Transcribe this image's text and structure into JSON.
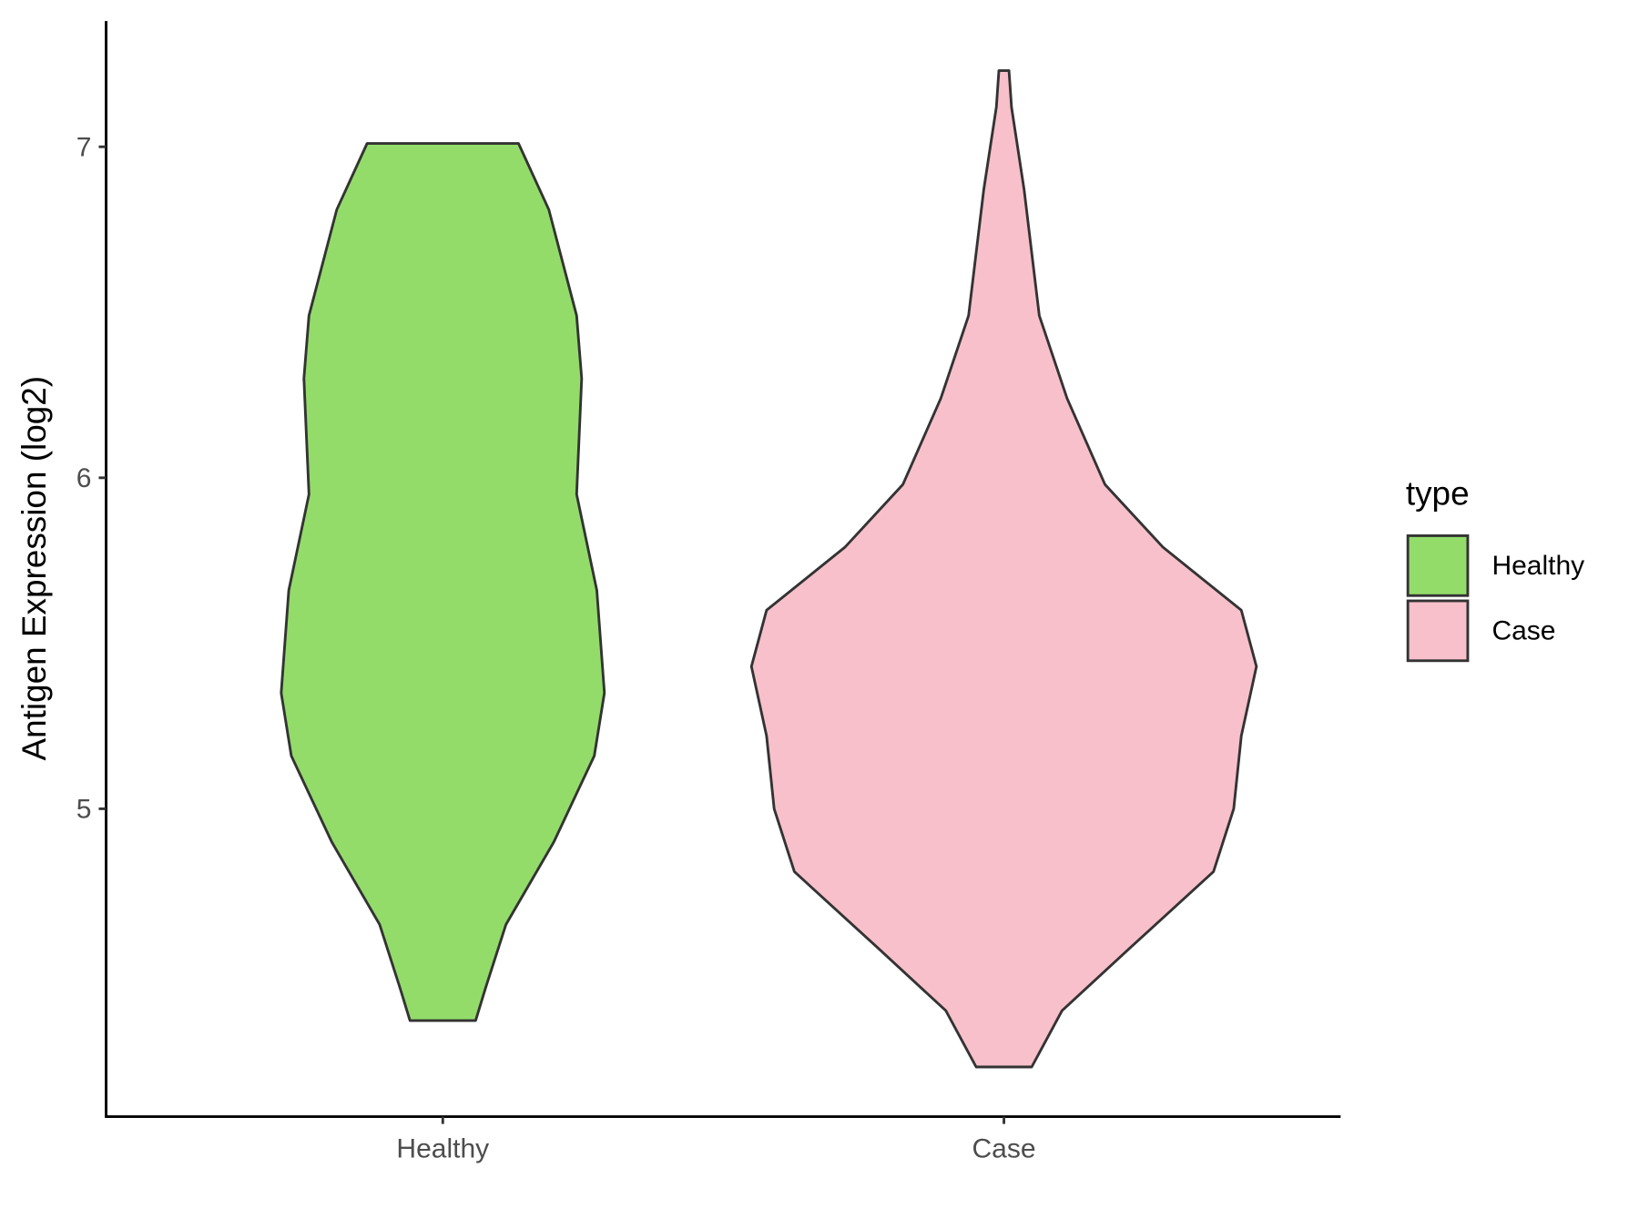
{
  "chart_data": {
    "type": "violin",
    "y_label": "Antigen Expression (log2)",
    "categories": [
      "Healthy",
      "Case"
    ],
    "ylim": [
      4.07,
      7.38
    ],
    "yticks": [
      5,
      6,
      7
    ],
    "legend_title": "type",
    "legend_position": "right",
    "series": [
      {
        "name": "Healthy",
        "color": "#93dc6a",
        "y": [
          7.01,
          6.81,
          6.49,
          6.3,
          5.95,
          5.66,
          5.35,
          5.16,
          4.9,
          4.65,
          4.46,
          4.36
        ],
        "width": [
          0.3,
          0.42,
          0.53,
          0.55,
          0.53,
          0.61,
          0.64,
          0.6,
          0.44,
          0.25,
          0.17,
          0.13
        ]
      },
      {
        "name": "Case",
        "color": "#f8c0cb",
        "y": [
          7.23,
          7.12,
          6.87,
          6.49,
          6.24,
          5.98,
          5.79,
          5.6,
          5.43,
          5.22,
          5.0,
          4.81,
          4.58,
          4.39,
          4.22
        ],
        "width": [
          0.02,
          0.03,
          0.08,
          0.14,
          0.25,
          0.4,
          0.63,
          0.94,
          1,
          0.94,
          0.91,
          0.83,
          0.5,
          0.23,
          0.11
        ]
      }
    ]
  }
}
